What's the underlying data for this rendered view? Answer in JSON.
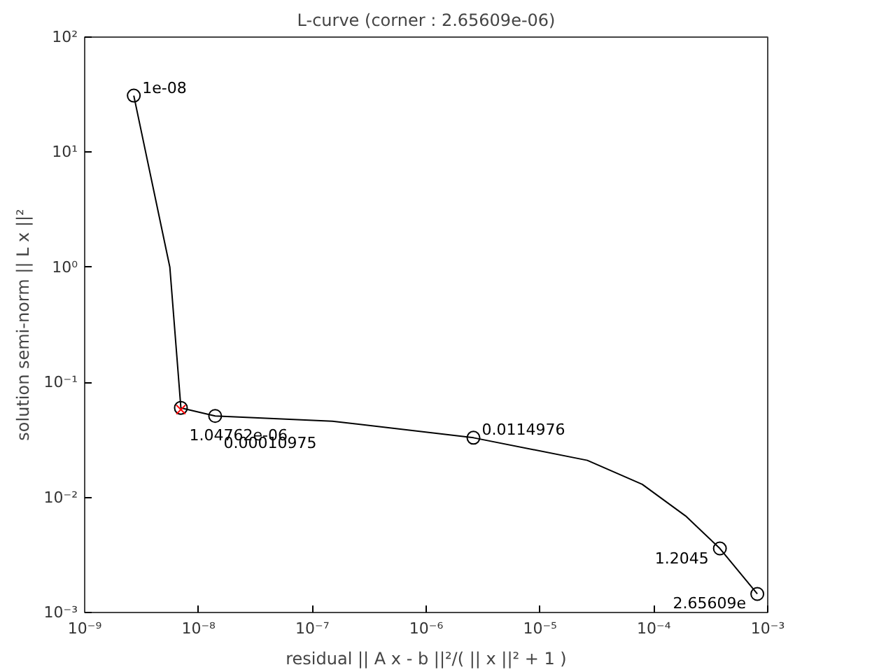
{
  "chart_data": {
    "type": "line",
    "title": "L-curve (corner : 2.65609e-06)",
    "xlabel": "residual || A x - b ||²/( || x ||² + 1 )",
    "ylabel": "solution semi-norm || L x ||²",
    "log": "xy",
    "grid": false,
    "xlim": [
      1e-09,
      0.001
    ],
    "ylim": [
      0.001,
      100
    ],
    "xticks": [
      {
        "value": 1e-09,
        "label": "10⁻⁹"
      },
      {
        "value": 1e-08,
        "label": "10⁻⁸"
      },
      {
        "value": 1e-07,
        "label": "10⁻⁷"
      },
      {
        "value": 1e-06,
        "label": "10⁻⁶"
      },
      {
        "value": 1e-05,
        "label": "10⁻⁵"
      },
      {
        "value": 0.0001,
        "label": "10⁻⁴"
      },
      {
        "value": 0.001,
        "label": "10⁻³"
      }
    ],
    "yticks": [
      {
        "value": 0.001,
        "label": "10⁻³"
      },
      {
        "value": 0.01,
        "label": "10⁻²"
      },
      {
        "value": 0.1,
        "label": "10⁻¹"
      },
      {
        "value": 1,
        "label": "10⁰"
      },
      {
        "value": 10,
        "label": "10¹"
      },
      {
        "value": 100,
        "label": "10²"
      }
    ],
    "series": [
      {
        "color": "#000000",
        "marker": "none",
        "line_style": "solid",
        "x": [
          2.7e-09,
          5.6e-09,
          7e-09,
          1.4e-08,
          1.5e-07,
          2.6e-06,
          2.6e-05,
          7.9e-05,
          0.00019,
          0.00038,
          0.00081
        ],
        "values": [
          31,
          1.0,
          0.06,
          0.051,
          0.046,
          0.033,
          0.021,
          0.013,
          0.0069,
          0.0036,
          0.00145
        ]
      },
      {
        "type": "scatter",
        "color": "#000000",
        "marker": "circle",
        "x": [
          2.7e-09,
          7e-09,
          1.4e-08,
          2.6e-06,
          0.00038,
          0.00081
        ],
        "values": [
          31,
          0.06,
          0.051,
          0.033,
          0.0036,
          0.00145
        ]
      },
      {
        "type": "scatter",
        "color": "#ff0000",
        "marker": "cross",
        "x": [
          7e-09
        ],
        "values": [
          0.058
        ]
      }
    ],
    "annotations": [
      {
        "text": "1e-08",
        "x": 2.7e-09,
        "y": 31
      },
      {
        "text": "1.04762e-06",
        "x": 7e-09,
        "y": 0.06
      },
      {
        "text": "0.00010975",
        "x": 1.4e-08,
        "y": 0.051
      },
      {
        "text": "0.0114976",
        "x": 2.6e-06,
        "y": 0.033
      },
      {
        "text": "1.2045",
        "x": 0.00038,
        "y": 0.0036
      },
      {
        "text": "2.65609e",
        "x": 0.00081,
        "y": 0.00145
      }
    ]
  }
}
